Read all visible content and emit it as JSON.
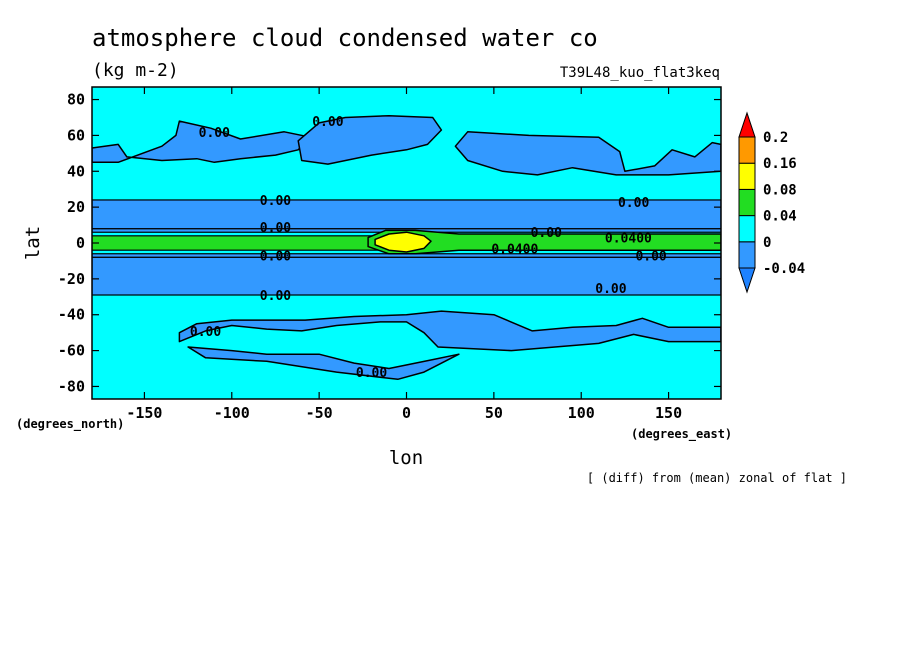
{
  "header": {
    "title": "atmosphere cloud condensed water co",
    "units": "(kg m-2)",
    "run_label": "T39L48_kuo_flat3keq"
  },
  "footer_note": "[ (diff) from (mean) zonal of flat ]",
  "chart_data": {
    "type": "heatmap",
    "title": "atmosphere cloud condensed water co",
    "units": "(kg m-2)",
    "xlabel": "lon",
    "ylabel": "lat",
    "x_unit_label": "(degrees_east)",
    "y_unit_label": "(degrees_north)",
    "xlim": [
      -180,
      180
    ],
    "ylim": [
      -87,
      87
    ],
    "x_ticks": [
      -150,
      -100,
      -50,
      0,
      50,
      100,
      150
    ],
    "x_tick_labels": [
      "-150",
      "-100",
      "-50",
      "0",
      "50",
      "100",
      "150"
    ],
    "y_ticks": [
      80,
      60,
      40,
      20,
      0,
      -20,
      -40,
      -60,
      -80
    ],
    "y_tick_labels": [
      "80",
      "60",
      "40",
      "20",
      "0",
      "-20",
      "-40",
      "-60",
      "-80"
    ],
    "legend": {
      "placement": "right",
      "levels": [
        -0.04,
        0,
        0.04,
        0.08,
        0.16,
        0.2
      ],
      "level_labels": [
        "-0.04",
        "0",
        "0.04",
        "0.08",
        "0.16",
        "0.2"
      ],
      "colors": [
        "#1e82ff",
        "#3399ff",
        "#00ffff",
        "#22dd22",
        "#ffff00",
        "#ff9900",
        "#ff0000"
      ]
    },
    "colors": {
      "below_min": "#1e82ff",
      "negative": "#3399ff",
      "near_zero": "#00ffff",
      "low_positive": "#22dd22",
      "mid_positive": "#ffff00",
      "high_positive": "#ff9900",
      "above_max": "#ff0000"
    },
    "background_band": "near_zero",
    "bands": [
      {
        "lat_min": 6,
        "lat_max": 8,
        "value_class": "negative"
      },
      {
        "lat_min": -8,
        "lat_max": -6,
        "value_class": "negative"
      },
      {
        "lat_min": -4,
        "lat_max": 4,
        "value_class": "low_positive",
        "lon_min": -180,
        "lon_max": 180
      },
      {
        "lat_min": 8,
        "lat_max": 24,
        "value_class": "negative"
      },
      {
        "lat_min": -29,
        "lat_max": -8,
        "value_class": "negative"
      }
    ],
    "regions": [
      {
        "name": "north-midlat-negative",
        "value_class": "negative",
        "polygon": [
          [
            -180,
            53
          ],
          [
            -165,
            55
          ],
          [
            -160,
            48
          ],
          [
            -140,
            46
          ],
          [
            -120,
            47
          ],
          [
            -110,
            45
          ],
          [
            -95,
            47
          ],
          [
            -75,
            49
          ],
          [
            -62,
            52
          ],
          [
            -55,
            59
          ],
          [
            -70,
            62
          ],
          [
            -95,
            58
          ],
          [
            -112,
            64
          ],
          [
            -130,
            68
          ],
          [
            -132,
            60
          ],
          [
            -140,
            54
          ],
          [
            -165,
            45
          ],
          [
            -180,
            45
          ]
        ]
      },
      {
        "name": "north-midlat-negative-2",
        "value_class": "negative",
        "polygon": [
          [
            -62,
            57
          ],
          [
            -50,
            67
          ],
          [
            -35,
            70
          ],
          [
            -10,
            71
          ],
          [
            15,
            70
          ],
          [
            20,
            63
          ],
          [
            12,
            55
          ],
          [
            0,
            52
          ],
          [
            -20,
            49
          ],
          [
            -45,
            44
          ],
          [
            -60,
            46
          ]
        ]
      },
      {
        "name": "north-midlat-negative-3",
        "value_class": "negative",
        "polygon": [
          [
            35,
            62
          ],
          [
            70,
            60
          ],
          [
            110,
            59
          ],
          [
            122,
            51
          ],
          [
            125,
            40
          ],
          [
            142,
            43
          ],
          [
            152,
            52
          ],
          [
            165,
            48
          ],
          [
            175,
            56
          ],
          [
            180,
            55
          ],
          [
            180,
            40
          ],
          [
            150,
            38
          ],
          [
            120,
            38
          ],
          [
            95,
            42
          ],
          [
            75,
            38
          ],
          [
            55,
            40
          ],
          [
            35,
            46
          ],
          [
            28,
            54
          ]
        ]
      },
      {
        "name": "south-midlat-negative",
        "value_class": "negative",
        "polygon": [
          [
            -130,
            -55
          ],
          [
            -115,
            -49
          ],
          [
            -100,
            -46
          ],
          [
            -80,
            -48
          ],
          [
            -60,
            -49
          ],
          [
            -40,
            -46
          ],
          [
            -15,
            -44
          ],
          [
            0,
            -44
          ],
          [
            10,
            -50
          ],
          [
            18,
            -58
          ],
          [
            60,
            -60
          ],
          [
            85,
            -58
          ],
          [
            110,
            -56
          ],
          [
            130,
            -51
          ],
          [
            150,
            -55
          ],
          [
            180,
            -55
          ],
          [
            180,
            -47
          ],
          [
            150,
            -47
          ],
          [
            135,
            -42
          ],
          [
            120,
            -46
          ],
          [
            95,
            -47
          ],
          [
            72,
            -49
          ],
          [
            50,
            -40
          ],
          [
            20,
            -38
          ],
          [
            0,
            -40
          ],
          [
            -30,
            -41
          ],
          [
            -58,
            -43
          ],
          [
            -80,
            -43
          ],
          [
            -100,
            -43
          ],
          [
            -120,
            -45
          ],
          [
            -130,
            -50
          ]
        ]
      },
      {
        "name": "south-polar-negative",
        "value_class": "negative",
        "polygon": [
          [
            -125,
            -58
          ],
          [
            -100,
            -60
          ],
          [
            -80,
            -62
          ],
          [
            -50,
            -62
          ],
          [
            -30,
            -67
          ],
          [
            -10,
            -70
          ],
          [
            15,
            -65
          ],
          [
            30,
            -62
          ],
          [
            10,
            -72
          ],
          [
            -5,
            -76
          ],
          [
            -40,
            -72
          ],
          [
            -80,
            -66
          ],
          [
            -115,
            -64
          ]
        ]
      },
      {
        "name": "equatorial-tongue-green",
        "value_class": "low_positive",
        "polygon": [
          [
            -22,
            3
          ],
          [
            -12,
            7
          ],
          [
            5,
            7
          ],
          [
            30,
            5
          ],
          [
            70,
            5
          ],
          [
            120,
            5
          ],
          [
            180,
            5
          ],
          [
            180,
            -4
          ],
          [
            120,
            -4
          ],
          [
            70,
            -4
          ],
          [
            30,
            -4
          ],
          [
            5,
            -6
          ],
          [
            -10,
            -6
          ],
          [
            -22,
            -2
          ]
        ]
      },
      {
        "name": "gulf-of-guinea-max",
        "value_class": "mid_positive",
        "polygon": [
          [
            -18,
            2
          ],
          [
            -10,
            5
          ],
          [
            0,
            6
          ],
          [
            10,
            4
          ],
          [
            14,
            1
          ],
          [
            10,
            -3
          ],
          [
            0,
            -5
          ],
          [
            -10,
            -4
          ],
          [
            -18,
            -1
          ]
        ]
      }
    ],
    "contour_labels": [
      {
        "text": "0.00",
        "lon": -110,
        "lat": 62
      },
      {
        "text": "0.00",
        "lon": -45,
        "lat": 68
      },
      {
        "text": "0.00",
        "lon": -75,
        "lat": 24
      },
      {
        "text": "0.00",
        "lon": -75,
        "lat": 9
      },
      {
        "text": "0.00",
        "lon": -75,
        "lat": -7
      },
      {
        "text": "0.00",
        "lon": -75,
        "lat": -29
      },
      {
        "text": "0.00",
        "lon": -115,
        "lat": -49
      },
      {
        "text": "0.00",
        "lon": -20,
        "lat": -72
      },
      {
        "text": "0.00",
        "lon": 130,
        "lat": 23
      },
      {
        "text": "0.00",
        "lon": 80,
        "lat": 6
      },
      {
        "text": "0.00",
        "lon": 140,
        "lat": -7
      },
      {
        "text": "0.00",
        "lon": 117,
        "lat": -25
      },
      {
        "text": "0.0400",
        "lon": 62,
        "lat": -3
      },
      {
        "text": "0.0400",
        "lon": 127,
        "lat": 3
      }
    ]
  }
}
